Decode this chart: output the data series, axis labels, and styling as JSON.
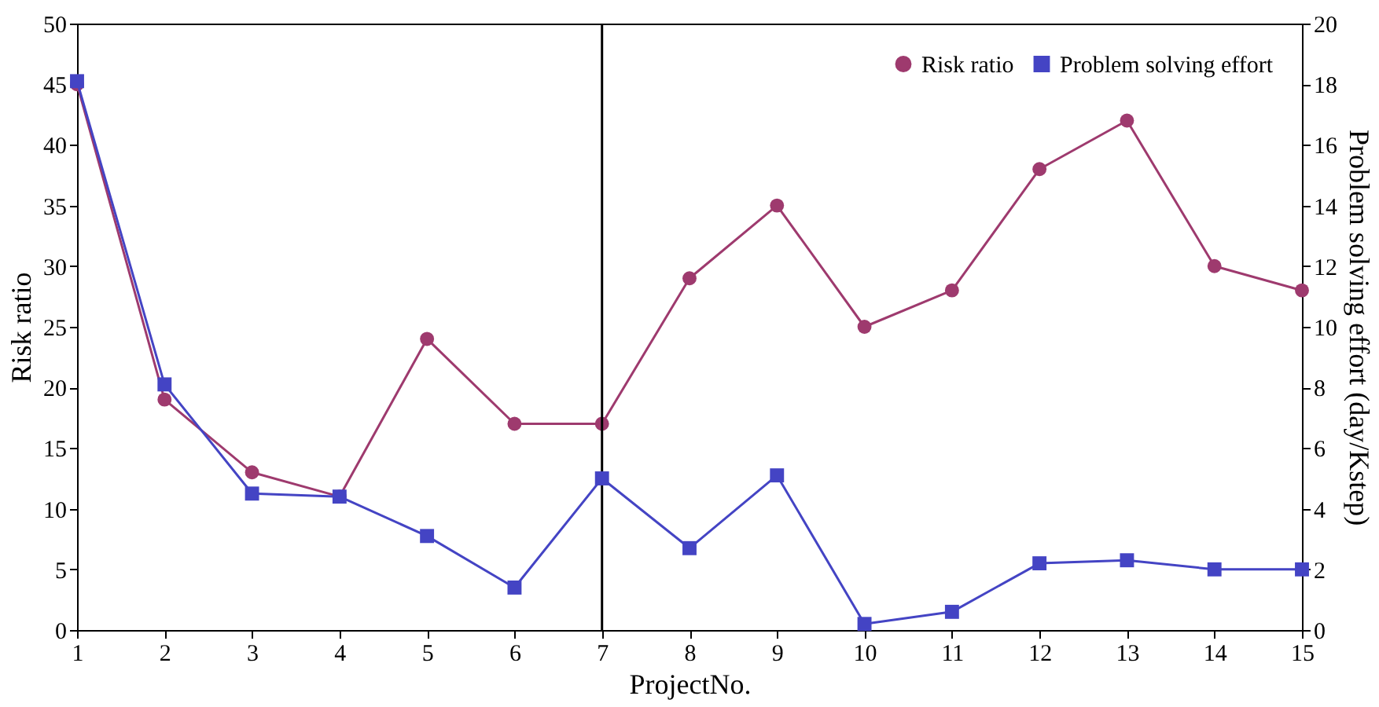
{
  "chart_data": {
    "type": "line",
    "xlabel": "ProjectNo.",
    "ylabel": "Risk ratio",
    "y2label": "Problem solving effort (day/Kstep)",
    "x": [
      1,
      2,
      3,
      4,
      5,
      6,
      7,
      8,
      9,
      10,
      11,
      12,
      13,
      14,
      15
    ],
    "series": [
      {
        "name": "Risk ratio",
        "color": "#9e3a6e",
        "marker": "circle",
        "axis": "y",
        "values": [
          45,
          19,
          13,
          11,
          24,
          17,
          17,
          29,
          35,
          25,
          28,
          38,
          42,
          30,
          28
        ]
      },
      {
        "name": "Problem solving effort",
        "color": "#4444c4",
        "marker": "square",
        "axis": "y2",
        "values": [
          18.1,
          8.1,
          4.5,
          4.4,
          3.1,
          1.4,
          5.0,
          2.7,
          5.1,
          0.2,
          0.6,
          2.2,
          2.3,
          2.0,
          2.0
        ]
      }
    ],
    "xlim": [
      1,
      15
    ],
    "xticks": [
      1,
      2,
      3,
      4,
      5,
      6,
      7,
      8,
      9,
      10,
      11,
      12,
      13,
      14,
      15
    ],
    "ylim": [
      0,
      50
    ],
    "yticks": [
      0,
      5,
      10,
      15,
      20,
      25,
      30,
      35,
      40,
      45,
      50
    ],
    "y2lim": [
      0,
      20
    ],
    "y2ticks": [
      0,
      2,
      4,
      6,
      8,
      10,
      12,
      14,
      16,
      18,
      20
    ],
    "ref_lines": [
      {
        "axis": "x",
        "value": 7,
        "color": "#000000"
      }
    ],
    "grid": false,
    "legend": "top right",
    "line_style": "solid"
  }
}
